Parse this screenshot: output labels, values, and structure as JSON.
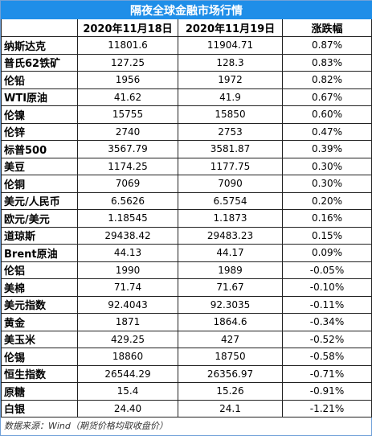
{
  "table": {
    "title": "隔夜全球金融市场行情",
    "header": [
      "",
      "2020年11月18日",
      "2020年11月19日",
      "涨跌幅"
    ],
    "rows": [
      [
        "纳斯达克",
        "11801.6",
        "11904.71",
        "0.87%"
      ],
      [
        "普氏62铁矿",
        "127.25",
        "128.3",
        "0.83%"
      ],
      [
        "伦铅",
        "1956",
        "1972",
        "0.82%"
      ],
      [
        "WTI原油",
        "41.62",
        "41.9",
        "0.67%"
      ],
      [
        "伦镍",
        "15755",
        "15850",
        "0.60%"
      ],
      [
        "伦锌",
        "2740",
        "2753",
        "0.47%"
      ],
      [
        "标普500",
        "3567.79",
        "3581.87",
        "0.39%"
      ],
      [
        "美豆",
        "1174.25",
        "1177.75",
        "0.30%"
      ],
      [
        "伦铜",
        "7069",
        "7090",
        "0.30%"
      ],
      [
        "美元/人民币",
        "6.5626",
        "6.5754",
        "0.20%"
      ],
      [
        "欧元/美元",
        "1.18545",
        "1.1873",
        "0.16%"
      ],
      [
        "道琼斯",
        "29438.42",
        "29483.23",
        "0.15%"
      ],
      [
        "Brent原油",
        "44.13",
        "44.17",
        "0.09%"
      ],
      [
        "伦铝",
        "1990",
        "1989",
        "-0.05%"
      ],
      [
        "美棉",
        "71.74",
        "71.67",
        "-0.10%"
      ],
      [
        "美元指数",
        "92.4043",
        "92.3035",
        "-0.11%"
      ],
      [
        "黄金",
        "1871",
        "1864.6",
        "-0.34%"
      ],
      [
        "美玉米",
        "429.25",
        "427",
        "-0.52%"
      ],
      [
        "伦锡",
        "18860",
        "18750",
        "-0.58%"
      ],
      [
        "恒生指数",
        "26544.29",
        "26356.97",
        "-0.71%"
      ],
      [
        "原糖",
        "15.4",
        "15.26",
        "-0.91%"
      ],
      [
        "白银",
        "24.40",
        "24.1",
        "-1.21%"
      ]
    ],
    "footer": "数据来源：Wind（期货价格均取收盘价）"
  }
}
